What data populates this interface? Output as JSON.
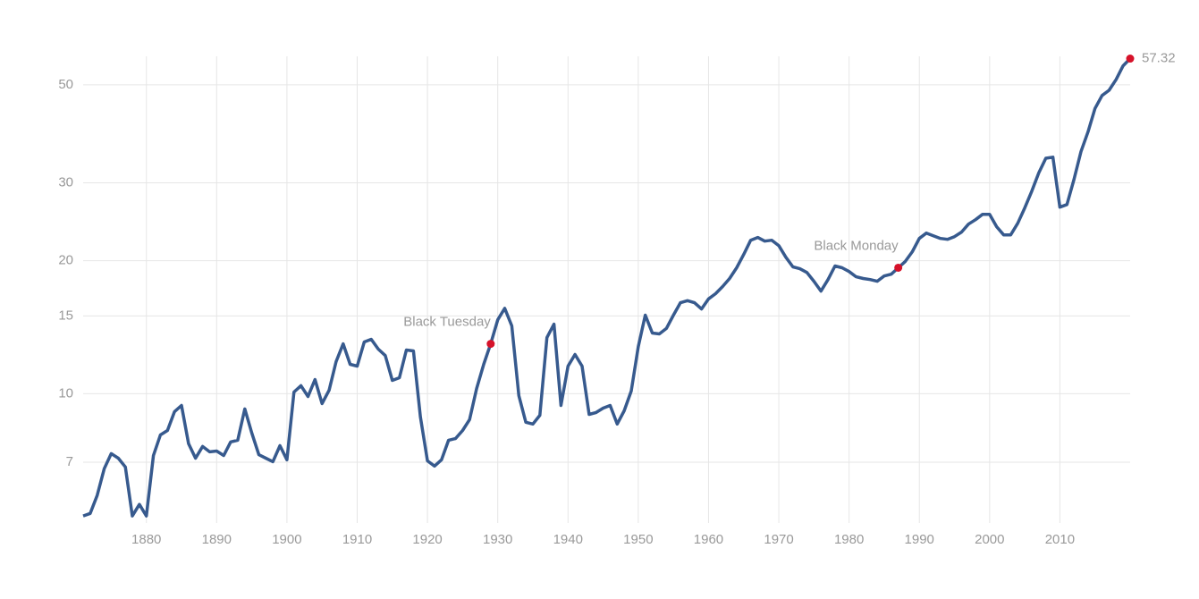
{
  "chart_data": {
    "type": "line",
    "log_y": true,
    "grid": true,
    "x": [
      1871,
      1872,
      1873,
      1874,
      1875,
      1876,
      1877,
      1878,
      1879,
      1880,
      1881,
      1882,
      1883,
      1884,
      1885,
      1886,
      1887,
      1888,
      1889,
      1890,
      1891,
      1892,
      1893,
      1894,
      1895,
      1896,
      1897,
      1898,
      1899,
      1900,
      1901,
      1902,
      1903,
      1904,
      1905,
      1906,
      1907,
      1908,
      1909,
      1910,
      1911,
      1912,
      1913,
      1914,
      1915,
      1916,
      1917,
      1918,
      1919,
      1920,
      1921,
      1922,
      1923,
      1924,
      1925,
      1926,
      1927,
      1928,
      1929,
      1930,
      1931,
      1932,
      1933,
      1934,
      1935,
      1936,
      1937,
      1938,
      1939,
      1940,
      1941,
      1942,
      1943,
      1944,
      1945,
      1946,
      1947,
      1948,
      1949,
      1950,
      1951,
      1952,
      1953,
      1954,
      1955,
      1956,
      1957,
      1958,
      1959,
      1960,
      1961,
      1962,
      1963,
      1964,
      1965,
      1966,
      1967,
      1968,
      1969,
      1970,
      1971,
      1972,
      1973,
      1974,
      1975,
      1976,
      1977,
      1978,
      1979,
      1980,
      1981,
      1982,
      1983,
      1984,
      1985,
      1986,
      1987,
      1988,
      1989,
      1990,
      1991,
      1992,
      1993,
      1994,
      1995,
      1996,
      1997,
      1998,
      1999,
      2000,
      2001,
      2002,
      2003,
      2004,
      2005,
      2006,
      2007,
      2008,
      2009,
      2010,
      2011,
      2012,
      2013,
      2014,
      2015,
      2016,
      2017,
      2018,
      2019,
      2020
    ],
    "series": [
      {
        "color": "#375a8e",
        "values": [
          5.29,
          5.36,
          5.89,
          6.77,
          7.32,
          7.15,
          6.83,
          5.29,
          5.62,
          5.29,
          7.25,
          8.07,
          8.26,
          9.11,
          9.41,
          7.71,
          7.15,
          7.6,
          7.39,
          7.42,
          7.25,
          7.78,
          7.85,
          9.24,
          8.15,
          7.28,
          7.15,
          7.02,
          7.63,
          7.09,
          10.09,
          10.43,
          9.86,
          10.77,
          9.5,
          10.19,
          11.82,
          12.97,
          11.66,
          11.55,
          13.1,
          13.28,
          12.62,
          12.2,
          10.72,
          10.87,
          12.56,
          12.5,
          8.86,
          7.05,
          6.86,
          7.09,
          7.85,
          7.92,
          8.26,
          8.74,
          10.28,
          11.66,
          12.97,
          14.7,
          15.6,
          14.24,
          9.9,
          8.62,
          8.54,
          8.94,
          13.4,
          14.37,
          9.41,
          11.55,
          12.27,
          11.55,
          8.98,
          9.07,
          9.28,
          9.41,
          8.54,
          9.15,
          10.14,
          12.79,
          15.06,
          13.72,
          13.66,
          14.05,
          15.06,
          16.07,
          16.24,
          16.07,
          15.55,
          16.39,
          16.84,
          17.48,
          18.23,
          19.28,
          20.66,
          22.25,
          22.57,
          22.15,
          22.25,
          21.64,
          20.37,
          19.37,
          19.18,
          18.81,
          17.97,
          17.07,
          18.13,
          19.46,
          19.28,
          18.9,
          18.39,
          18.23,
          18.13,
          17.97,
          18.47,
          18.64,
          19.28,
          19.93,
          20.96,
          22.46,
          23.1,
          22.78,
          22.46,
          22.36,
          22.67,
          23.21,
          24.2,
          24.77,
          25.47,
          25.47,
          23.87,
          22.88,
          22.88,
          24.31,
          26.32,
          28.74,
          31.6,
          34.1,
          34.3,
          26.44,
          26.8,
          30.5,
          35.3,
          39.1,
          44.2,
          47.3,
          48.6,
          51.4,
          55.2,
          57.32
        ]
      }
    ],
    "xlim": [
      1871,
      2020
    ],
    "ylim": [
      5.1,
      58
    ],
    "xticks": [
      1880,
      1890,
      1900,
      1910,
      1920,
      1930,
      1940,
      1950,
      1960,
      1970,
      1980,
      1990,
      2000,
      2010
    ],
    "yticks": [
      7,
      10,
      15,
      20,
      30,
      50
    ],
    "annotations": [
      {
        "text": "Black Tuesday",
        "x": 1929
      },
      {
        "text": "Black Monday",
        "x": 1987
      }
    ],
    "marker_color": "#d6122a"
  }
}
